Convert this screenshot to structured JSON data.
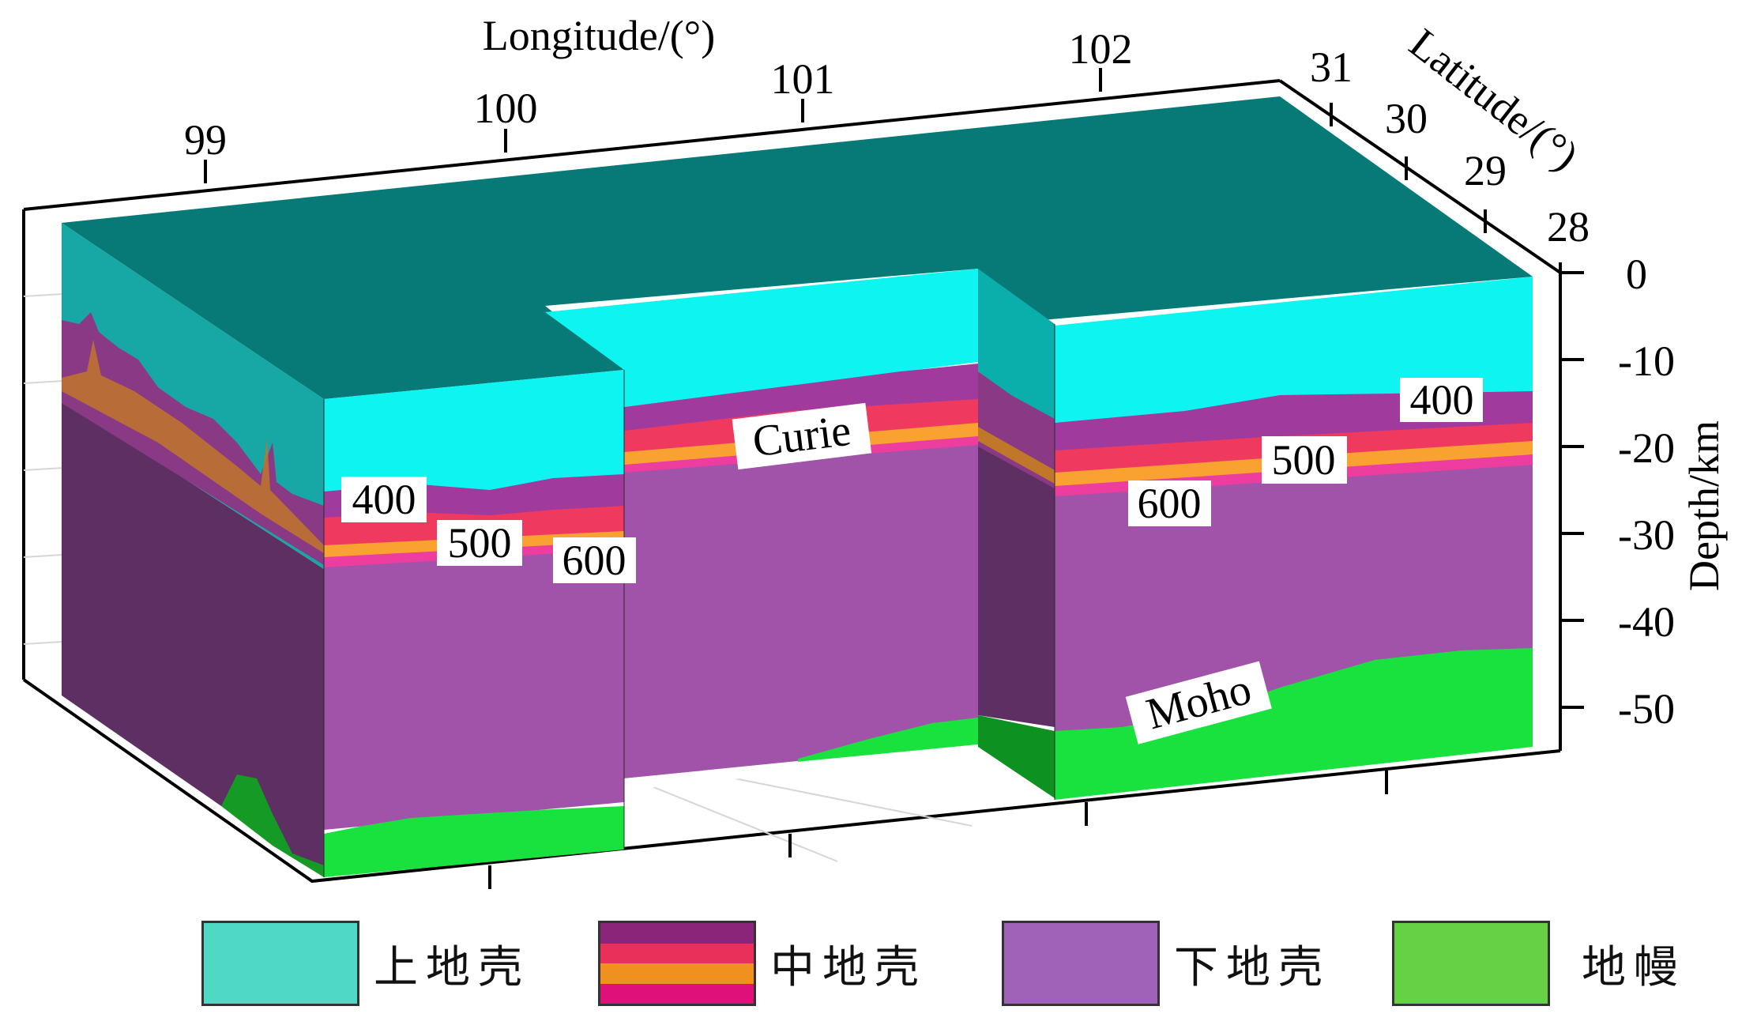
{
  "axes": {
    "longitude_label": "Longitude/(°)",
    "longitude_ticks": [
      "99",
      "100",
      "101",
      "102"
    ],
    "latitude_label": "Latitude/(°)",
    "latitude_ticks": [
      "31",
      "30",
      "29",
      "28"
    ],
    "depth_label": "Depth/km",
    "depth_ticks": [
      "0",
      "-10",
      "-20",
      "-30",
      "-40",
      "-50"
    ]
  },
  "contour_labels": {
    "left_400": "400",
    "left_500": "500",
    "left_600": "600",
    "curie": "Curie",
    "right_400": "400",
    "right_500": "500",
    "right_600": "600",
    "moho": "Moho"
  },
  "legend": [
    {
      "label": "上地壳",
      "colors": [
        "#4dd9c4"
      ]
    },
    {
      "label": "中地壳",
      "colors": [
        "#8a2579",
        "#e8305a",
        "#f0901e",
        "#e0107a"
      ]
    },
    {
      "label": "下地壳",
      "colors": [
        "#a062b8"
      ]
    },
    {
      "label": "地幔",
      "colors": [
        "#66d144"
      ]
    }
  ],
  "colors": {
    "top_face": "#077a77",
    "upper_crust": "#0ef4f1",
    "lower_crust": "#a053a9",
    "lower_crust_side": "#5e2f63",
    "mantle": "#19e23f",
    "mantle_dark": "#0a8f1f",
    "mid_purple": "#a03a9c",
    "mid_red": "#f0395f",
    "mid_orange": "#f9a231",
    "mid_pink": "#ed3ea0"
  }
}
